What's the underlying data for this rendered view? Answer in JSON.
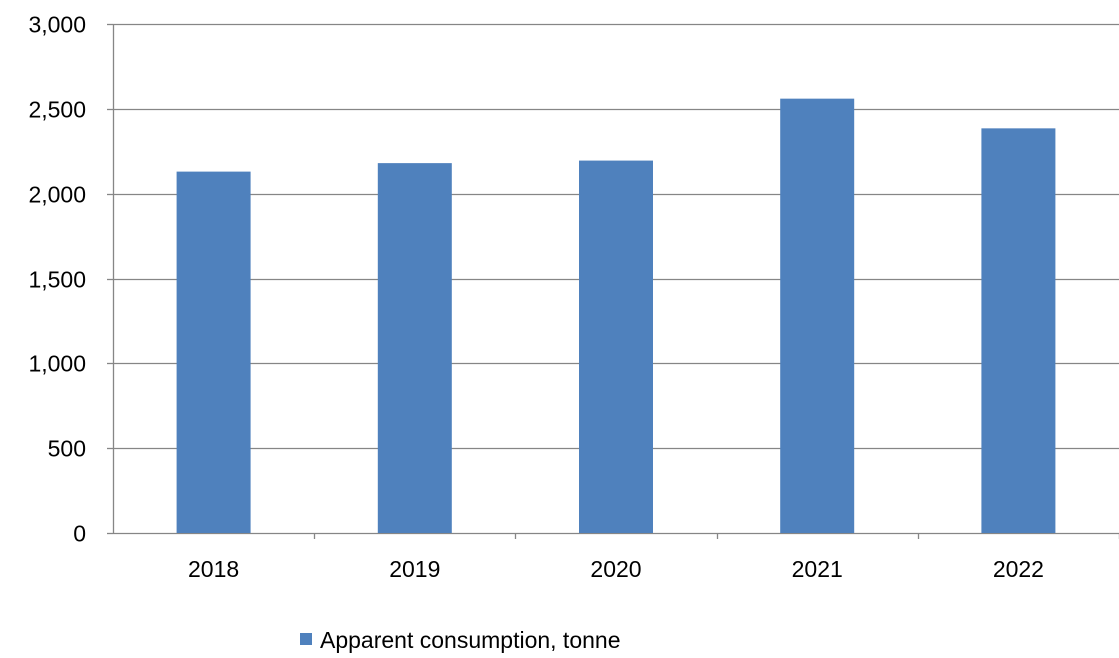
{
  "chart_data": {
    "type": "bar",
    "categories": [
      "2018",
      "2019",
      "2020",
      "2021",
      "2022"
    ],
    "series": [
      {
        "name": "Apparent consumption, tonne",
        "values": [
          2130,
          2180,
          2195,
          2560,
          2385
        ],
        "color": "#4f81bd"
      }
    ],
    "ylim": [
      0,
      3000
    ],
    "yticks": [
      0,
      500,
      1000,
      1500,
      2000,
      2500,
      3000
    ],
    "ytick_labels": [
      "0",
      "500",
      "1,000",
      "1,500",
      "2,000",
      "2,500",
      "3,000"
    ],
    "grid": true,
    "legend_position": "bottom",
    "title": "",
    "xlabel": "",
    "ylabel": ""
  }
}
